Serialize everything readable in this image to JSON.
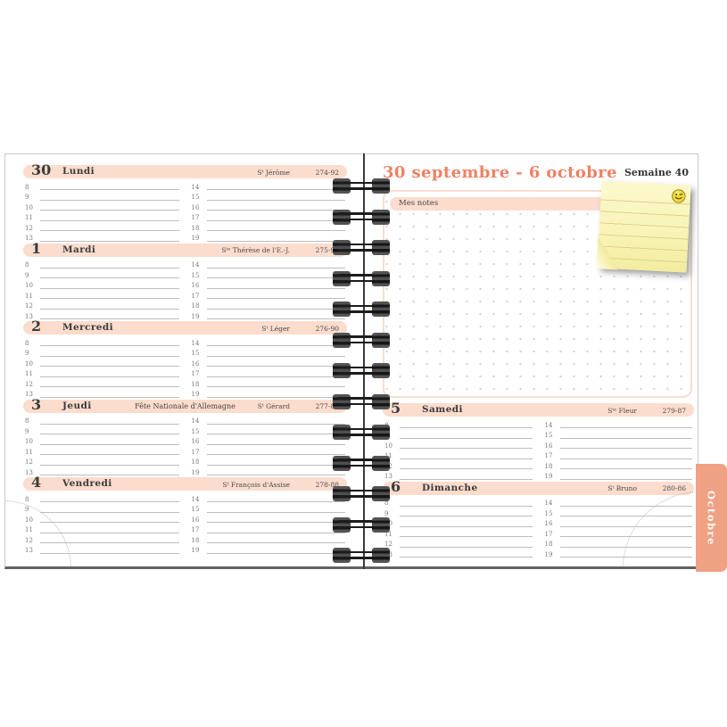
{
  "header": {
    "title": "30 septembre - 6 octobre",
    "week_label": "Semaine 40"
  },
  "notes": {
    "label": "Mes notes"
  },
  "month_tab": {
    "label": "Octobre"
  },
  "days": [
    {
      "num": "30",
      "name": "Lundi",
      "holiday": "",
      "saint": "Sᵗ Jérôme",
      "code": "274-92"
    },
    {
      "num": "1",
      "name": "Mardi",
      "holiday": "",
      "saint": "Sᵗᵉ Thérèse de l'E.-J.",
      "code": "275-91"
    },
    {
      "num": "2",
      "name": "Mercredi",
      "holiday": "",
      "saint": "Sᵗ Léger",
      "code": "276-90"
    },
    {
      "num": "3",
      "name": "Jeudi",
      "holiday": "Fête Nationale d'Allemagne",
      "saint": "Sᵗ Gérard",
      "code": "277-89"
    },
    {
      "num": "4",
      "name": "Vendredi",
      "holiday": "",
      "saint": "Sᵗ François d'Assise",
      "code": "278-88"
    },
    {
      "num": "5",
      "name": "Samedi",
      "holiday": "",
      "saint": "Sᵗᵉ Fleur",
      "code": "279-87"
    },
    {
      "num": "6",
      "name": "Dimanche",
      "holiday": "",
      "saint": "Sᵗ Bruno",
      "code": "280-86"
    }
  ],
  "hours_morning": [
    "8",
    "9",
    "10",
    "11",
    "12",
    "13"
  ],
  "hours_afternoon": [
    "14",
    "15",
    "16",
    "17",
    "18",
    "19"
  ],
  "icons": {
    "smiley": "winking-smiley-sticker"
  },
  "colors": {
    "accent_title": "#ee8164",
    "day_bar": "#fbdccd",
    "month_tab": "#efa183",
    "sticky_note": "#f8f2b2",
    "binding_wire": "#1c1c1c",
    "page": "#ffffff"
  }
}
